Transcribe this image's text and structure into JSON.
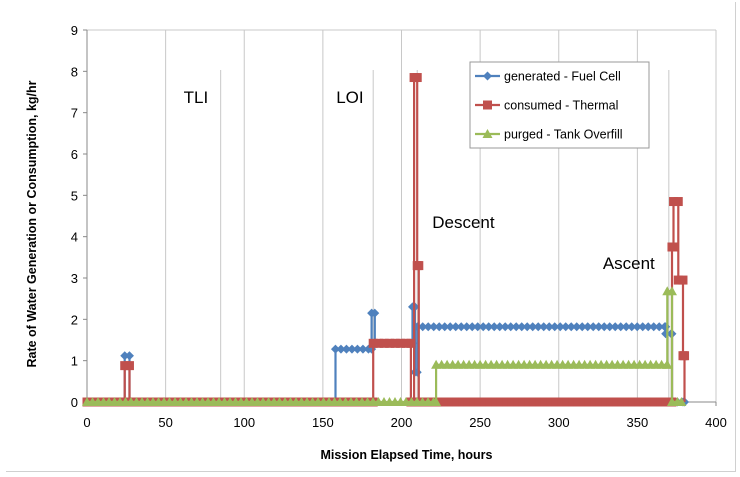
{
  "chart_data": {
    "type": "line",
    "title": "",
    "xlabel": "Mission Elapsed Time, hours",
    "ylabel": "Rate of Water Generation or Consumption,  kg/hr",
    "xlim": [
      0,
      400
    ],
    "ylim": [
      0,
      9
    ],
    "x_ticks": [
      0,
      50,
      100,
      150,
      200,
      250,
      300,
      350,
      400
    ],
    "y_ticks": [
      0,
      1,
      2,
      3,
      4,
      5,
      6,
      7,
      8,
      9
    ],
    "grid": "vertical",
    "legend_position": "top-right",
    "event_lines": [
      {
        "label": "TLI",
        "x": 85
      },
      {
        "label": "LOI",
        "x": 182
      },
      {
        "label": "Descent",
        "x": 210
      },
      {
        "label": "Ascent",
        "x": 370
      }
    ],
    "series": [
      {
        "name": "generated - Fuel Cell",
        "color": "#4f81bd",
        "marker": "diamond",
        "points": [
          [
            0,
            0
          ],
          [
            24,
            0
          ],
          [
            24,
            1.12
          ],
          [
            27,
            1.12
          ],
          [
            27,
            0
          ],
          [
            158,
            0
          ],
          [
            158,
            1.28
          ],
          [
            181,
            1.28
          ],
          [
            181,
            2.15
          ],
          [
            183,
            2.15
          ],
          [
            183,
            1.42
          ],
          [
            207,
            1.42
          ],
          [
            207,
            2.3
          ],
          [
            208.5,
            2.3
          ],
          [
            208.5,
            0.72
          ],
          [
            210,
            0.72
          ],
          [
            210,
            1.82
          ],
          [
            368,
            1.82
          ],
          [
            368,
            1.65
          ],
          [
            372,
            1.65
          ],
          [
            372,
            0
          ],
          [
            380,
            0
          ]
        ]
      },
      {
        "name": "consumed - Thermal",
        "color": "#c0504d",
        "marker": "square",
        "points": [
          [
            0,
            0
          ],
          [
            24,
            0
          ],
          [
            24,
            0.88
          ],
          [
            27,
            0.88
          ],
          [
            27,
            0
          ],
          [
            182,
            0
          ],
          [
            182,
            1.42
          ],
          [
            206,
            1.42
          ],
          [
            206,
            0
          ],
          [
            208,
            0
          ],
          [
            208,
            7.85
          ],
          [
            210,
            7.85
          ],
          [
            210,
            3.3
          ],
          [
            211,
            3.3
          ],
          [
            211,
            0
          ],
          [
            372,
            0
          ],
          [
            372,
            3.75
          ],
          [
            373,
            3.75
          ],
          [
            373,
            4.85
          ],
          [
            376,
            4.85
          ],
          [
            376,
            2.95
          ],
          [
            379,
            2.95
          ],
          [
            379,
            1.12
          ],
          [
            380,
            1.12
          ],
          [
            380,
            0
          ]
        ]
      },
      {
        "name": "purged - Tank Overfill",
        "color": "#9bbb59",
        "marker": "triangle",
        "points": [
          [
            0,
            0
          ],
          [
            222,
            0
          ],
          [
            222,
            0.9
          ],
          [
            369,
            0.9
          ],
          [
            369,
            2.68
          ],
          [
            372,
            2.68
          ],
          [
            372,
            0
          ],
          [
            378,
            0
          ]
        ]
      }
    ]
  }
}
